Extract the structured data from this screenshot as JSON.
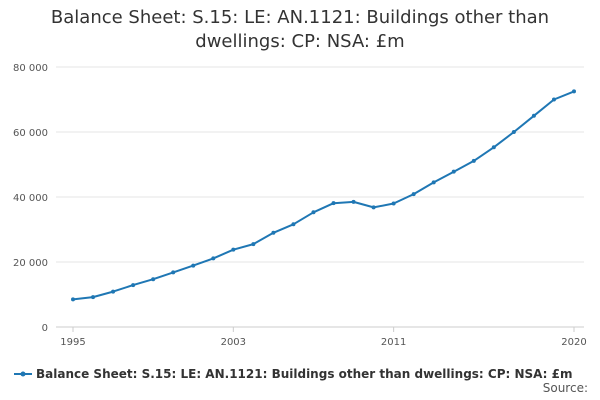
{
  "chart_data": {
    "type": "line",
    "title": "Balance Sheet: S.15: LE: AN.1121: Buildings other than dwellings: CP: NSA: £m",
    "xlabel": "",
    "ylabel": "",
    "x": [
      1995,
      1996,
      1997,
      1998,
      1999,
      2000,
      2001,
      2002,
      2003,
      2004,
      2005,
      2006,
      2007,
      2008,
      2009,
      2010,
      2011,
      2012,
      2013,
      2014,
      2015,
      2016,
      2017,
      2018,
      2019,
      2020
    ],
    "series": [
      {
        "name": "Balance Sheet: S.15: LE: AN.1121: Buildings other than dwellings: CP: NSA: £m",
        "color": "#1f77b4",
        "values": [
          8500,
          9200,
          10900,
          12900,
          14700,
          16800,
          18900,
          21100,
          23800,
          25500,
          29000,
          31600,
          35300,
          38100,
          38500,
          36800,
          38000,
          40900,
          44500,
          47800,
          51100,
          55300,
          60000,
          65000,
          70000,
          72500
        ]
      }
    ],
    "xlim": [
      1995,
      2020
    ],
    "ylim": [
      0,
      80000
    ],
    "x_ticks": [
      1995,
      2003,
      2011,
      2020
    ],
    "y_ticks": [
      0,
      20000,
      40000,
      60000,
      80000
    ],
    "y_tick_labels": [
      "0",
      "20 000",
      "40 000",
      "60 000",
      "80 000"
    ],
    "grid": true,
    "legend_position": "bottom-left"
  },
  "source_label": "Source:"
}
